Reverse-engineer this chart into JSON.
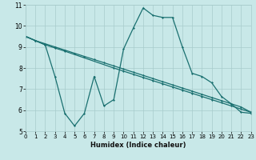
{
  "xlabel": "Humidex (Indice chaleur)",
  "xlim": [
    0,
    23
  ],
  "ylim": [
    5,
    11
  ],
  "yticks": [
    5,
    6,
    7,
    8,
    9,
    10,
    11
  ],
  "xticks": [
    0,
    1,
    2,
    3,
    4,
    5,
    6,
    7,
    8,
    9,
    10,
    11,
    12,
    13,
    14,
    15,
    16,
    17,
    18,
    19,
    20,
    21,
    22,
    23
  ],
  "background_color": "#c8e8e8",
  "grid_color": "#a8cccc",
  "line_color": "#1a7070",
  "series": [
    {
      "x": [
        0,
        1,
        2,
        3,
        4,
        5,
        6,
        7,
        8,
        9,
        10,
        11,
        12,
        13,
        14,
        15,
        16,
        17,
        18,
        19,
        20,
        21,
        22,
        23
      ],
      "y": [
        9.5,
        9.3,
        9.15,
        9.0,
        8.85,
        8.7,
        8.55,
        8.4,
        8.25,
        8.1,
        7.95,
        7.8,
        7.65,
        7.5,
        7.35,
        7.2,
        7.05,
        6.9,
        6.75,
        6.6,
        6.45,
        6.3,
        6.15,
        5.9
      ]
    },
    {
      "x": [
        0,
        1,
        2,
        3,
        4,
        9,
        10,
        11,
        12,
        13,
        14,
        15,
        16,
        17,
        18,
        19,
        20,
        21,
        22,
        23
      ],
      "y": [
        9.5,
        9.3,
        9.1,
        8.95,
        8.8,
        8.0,
        7.85,
        7.7,
        7.55,
        7.4,
        7.25,
        7.1,
        6.95,
        6.8,
        6.65,
        6.5,
        6.35,
        6.2,
        6.05,
        5.9
      ]
    },
    {
      "x": [
        0,
        1,
        2,
        3,
        4,
        5,
        6,
        7,
        8,
        9,
        10,
        11,
        12,
        13,
        14,
        15,
        16,
        17,
        18,
        19,
        20,
        21,
        22,
        23
      ],
      "y": [
        9.5,
        9.3,
        9.1,
        7.6,
        5.85,
        5.25,
        5.85,
        7.6,
        6.2,
        6.5,
        8.9,
        9.9,
        10.85,
        10.5,
        10.4,
        10.4,
        9.0,
        7.75,
        7.6,
        7.3,
        6.65,
        6.3,
        5.9,
        5.85
      ]
    }
  ]
}
